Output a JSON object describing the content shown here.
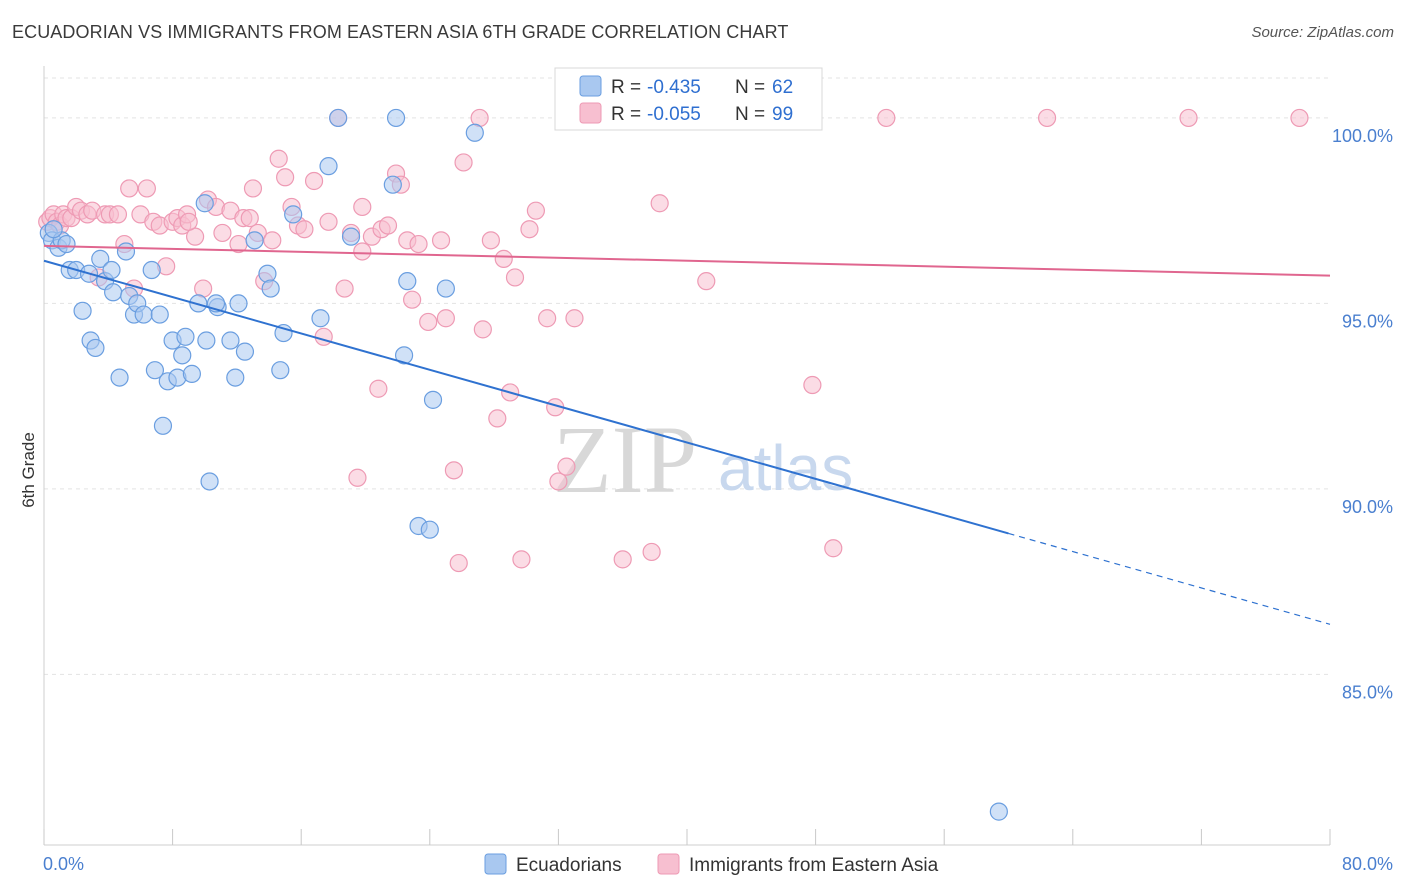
{
  "title": "ECUADORIAN VS IMMIGRANTS FROM EASTERN ASIA 6TH GRADE CORRELATION CHART",
  "source": "Source: ZipAtlas.com",
  "colors": {
    "blue_fill": "#a9c8f0",
    "blue_stroke": "#6a9ee0",
    "blue_line": "#2f72d0",
    "pink_fill": "#f7bfd0",
    "pink_stroke": "#ee9ab4",
    "pink_line": "#e0668f",
    "axis_text": "#4a7fcf",
    "grid": "#e3e3e3"
  },
  "chart_data": {
    "type": "scatter",
    "title": "ECUADORIAN VS IMMIGRANTS FROM EASTERN ASIA 6TH GRADE CORRELATION CHART",
    "xlabel": "",
    "ylabel": "6th Grade",
    "xlim": [
      0,
      80
    ],
    "ylim": [
      80.4,
      101.4
    ],
    "x_tick_labels": [
      "0.0%",
      "80.0%"
    ],
    "y_ticks": [
      85,
      90,
      95,
      100
    ],
    "y_tick_labels": [
      "85.0%",
      "90.0%",
      "95.0%",
      "100.0%"
    ],
    "legend": {
      "position": "top-center",
      "entries": [
        {
          "r_label": "R =",
          "r_value": "-0.435",
          "n_label": "N =",
          "n_value": "62"
        },
        {
          "r_label": "R =",
          "r_value": "-0.055",
          "n_label": "N =",
          "n_value": "99"
        }
      ]
    },
    "bottom_legend": [
      "Ecuadorians",
      "Immigrants from Eastern Asia"
    ],
    "watermark": {
      "zip": "ZIP",
      "atlas": "atlas"
    },
    "series": [
      {
        "name": "Ecuadorians",
        "r": -0.435,
        "n": 62,
        "trend": {
          "x0": 0,
          "y0": 96.15,
          "x1": 60,
          "y1": 88.8,
          "dashed_to_x": 80,
          "dashed_to_y": 86.35
        },
        "points": [
          [
            0.3,
            96.9
          ],
          [
            0.5,
            96.7
          ],
          [
            0.9,
            96.5
          ],
          [
            1.1,
            96.7
          ],
          [
            0.6,
            97.0
          ],
          [
            1.4,
            96.6
          ],
          [
            1.6,
            95.9
          ],
          [
            2.0,
            95.9
          ],
          [
            2.4,
            94.8
          ],
          [
            2.8,
            95.8
          ],
          [
            2.9,
            94.0
          ],
          [
            3.2,
            93.8
          ],
          [
            3.5,
            96.2
          ],
          [
            3.8,
            95.6
          ],
          [
            4.2,
            95.9
          ],
          [
            4.3,
            95.3
          ],
          [
            4.7,
            93.0
          ],
          [
            5.1,
            96.4
          ],
          [
            5.3,
            95.2
          ],
          [
            5.6,
            94.7
          ],
          [
            5.8,
            95.0
          ],
          [
            6.2,
            94.7
          ],
          [
            6.7,
            95.9
          ],
          [
            6.9,
            93.2
          ],
          [
            7.2,
            94.7
          ],
          [
            7.4,
            91.7
          ],
          [
            7.7,
            92.9
          ],
          [
            8.0,
            94.0
          ],
          [
            8.3,
            93.0
          ],
          [
            8.6,
            93.6
          ],
          [
            8.8,
            94.1
          ],
          [
            9.2,
            93.1
          ],
          [
            9.6,
            95.0
          ],
          [
            10.0,
            97.7
          ],
          [
            10.1,
            94.0
          ],
          [
            10.3,
            90.2
          ],
          [
            10.8,
            94.9
          ],
          [
            10.7,
            95.0
          ],
          [
            11.6,
            94.0
          ],
          [
            11.9,
            93.0
          ],
          [
            12.1,
            95.0
          ],
          [
            12.5,
            93.7
          ],
          [
            13.1,
            96.7
          ],
          [
            13.9,
            95.8
          ],
          [
            14.1,
            95.4
          ],
          [
            14.7,
            93.2
          ],
          [
            14.9,
            94.2
          ],
          [
            15.5,
            97.4
          ],
          [
            17.2,
            94.6
          ],
          [
            17.7,
            98.7
          ],
          [
            18.3,
            100.0
          ],
          [
            19.1,
            96.8
          ],
          [
            21.7,
            98.2
          ],
          [
            21.9,
            100.0
          ],
          [
            22.4,
            93.6
          ],
          [
            22.6,
            95.6
          ],
          [
            23.3,
            89.0
          ],
          [
            24.0,
            88.9
          ],
          [
            24.2,
            92.4
          ],
          [
            25.0,
            95.4
          ],
          [
            26.8,
            99.6
          ],
          [
            59.4,
            81.3
          ]
        ]
      },
      {
        "name": "Immigrants from Eastern Asia",
        "r": -0.055,
        "n": 99,
        "trend": {
          "x0": 0,
          "y0": 96.55,
          "x1": 80,
          "y1": 95.75
        },
        "points": [
          [
            0.2,
            97.2
          ],
          [
            0.4,
            97.3
          ],
          [
            0.6,
            97.4
          ],
          [
            0.8,
            97.2
          ],
          [
            1.0,
            97.1
          ],
          [
            1.2,
            97.4
          ],
          [
            1.4,
            97.3
          ],
          [
            1.7,
            97.3
          ],
          [
            2.0,
            97.6
          ],
          [
            2.3,
            97.5
          ],
          [
            2.7,
            97.4
          ],
          [
            3.0,
            97.5
          ],
          [
            3.4,
            95.7
          ],
          [
            3.8,
            97.4
          ],
          [
            4.1,
            97.4
          ],
          [
            4.6,
            97.4
          ],
          [
            5.0,
            96.6
          ],
          [
            5.3,
            98.1
          ],
          [
            5.6,
            95.4
          ],
          [
            6.0,
            97.4
          ],
          [
            6.4,
            98.1
          ],
          [
            6.8,
            97.2
          ],
          [
            7.2,
            97.1
          ],
          [
            7.6,
            96.0
          ],
          [
            8.0,
            97.2
          ],
          [
            8.3,
            97.3
          ],
          [
            8.6,
            97.1
          ],
          [
            8.9,
            97.4
          ],
          [
            9.4,
            96.8
          ],
          [
            9.9,
            95.4
          ],
          [
            10.2,
            97.8
          ],
          [
            10.7,
            97.6
          ],
          [
            11.1,
            96.9
          ],
          [
            11.6,
            97.5
          ],
          [
            12.1,
            96.6
          ],
          [
            12.4,
            97.3
          ],
          [
            13.0,
            98.1
          ],
          [
            13.3,
            96.9
          ],
          [
            13.7,
            95.6
          ],
          [
            14.2,
            96.7
          ],
          [
            14.6,
            98.9
          ],
          [
            15.0,
            98.4
          ],
          [
            15.4,
            97.6
          ],
          [
            15.8,
            97.1
          ],
          [
            16.2,
            97.0
          ],
          [
            16.8,
            98.3
          ],
          [
            17.4,
            94.1
          ],
          [
            17.7,
            97.2
          ],
          [
            18.3,
            100.0
          ],
          [
            18.7,
            95.4
          ],
          [
            19.1,
            96.9
          ],
          [
            19.5,
            90.3
          ],
          [
            19.8,
            96.4
          ],
          [
            20.4,
            96.8
          ],
          [
            20.8,
            92.7
          ],
          [
            21.0,
            97.0
          ],
          [
            21.4,
            97.1
          ],
          [
            21.9,
            98.5
          ],
          [
            22.2,
            98.2
          ],
          [
            22.6,
            96.7
          ],
          [
            22.9,
            95.1
          ],
          [
            23.3,
            96.6
          ],
          [
            23.9,
            94.5
          ],
          [
            24.7,
            96.7
          ],
          [
            25.0,
            94.6
          ],
          [
            25.5,
            90.5
          ],
          [
            25.8,
            88.0
          ],
          [
            26.1,
            98.8
          ],
          [
            27.1,
            100.0
          ],
          [
            27.3,
            94.3
          ],
          [
            27.8,
            96.7
          ],
          [
            28.2,
            91.9
          ],
          [
            28.6,
            96.2
          ],
          [
            29.0,
            92.6
          ],
          [
            29.3,
            95.7
          ],
          [
            29.7,
            88.1
          ],
          [
            30.2,
            97.0
          ],
          [
            30.6,
            97.5
          ],
          [
            31.3,
            94.6
          ],
          [
            31.8,
            92.2
          ],
          [
            32.0,
            90.2
          ],
          [
            32.5,
            90.6
          ],
          [
            33.0,
            94.6
          ],
          [
            34.9,
            100.0
          ],
          [
            36.0,
            88.1
          ],
          [
            37.1,
            100.0
          ],
          [
            37.8,
            88.3
          ],
          [
            38.3,
            97.7
          ],
          [
            41.2,
            95.6
          ],
          [
            42.0,
            100.0
          ],
          [
            47.8,
            92.8
          ],
          [
            49.1,
            88.4
          ],
          [
            52.4,
            100.0
          ],
          [
            62.4,
            100.0
          ],
          [
            71.2,
            100.0
          ],
          [
            78.1,
            100.0
          ],
          [
            9.0,
            97.2
          ],
          [
            12.8,
            97.3
          ],
          [
            19.8,
            97.6
          ]
        ]
      }
    ]
  }
}
